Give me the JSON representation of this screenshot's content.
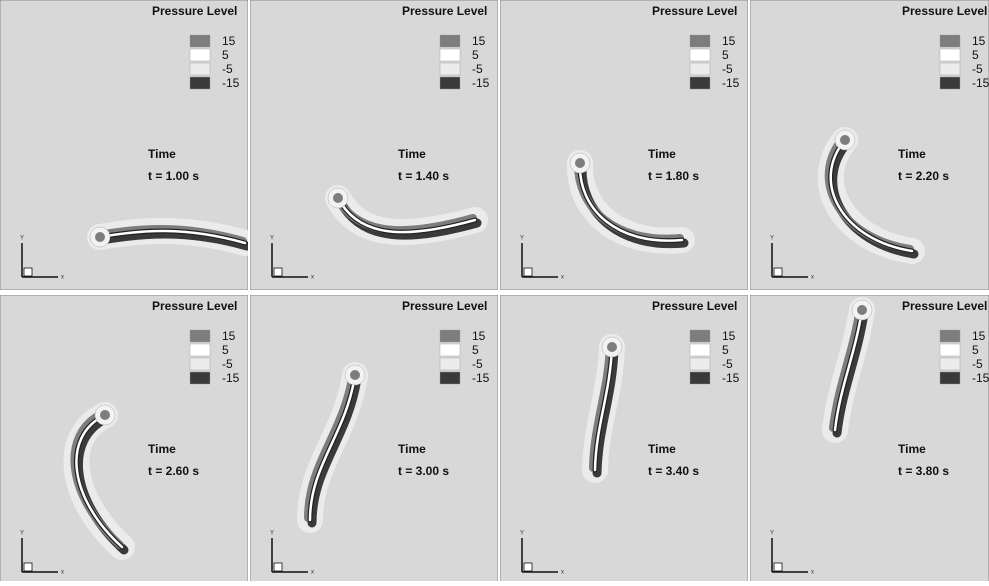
{
  "legend": {
    "title": "Pressure Level",
    "levels": [
      "15",
      "5",
      "-5",
      "-15"
    ]
  },
  "time_label": "Time",
  "axis_labels": {
    "y": "Y",
    "x": "x"
  },
  "panels": [
    {
      "time": "t = 1.00 s"
    },
    {
      "time": "t = 1.40 s"
    },
    {
      "time": "t = 1.80 s"
    },
    {
      "time": "t = 2.20 s"
    },
    {
      "time": "t = 2.60 s"
    },
    {
      "time": "t = 3.00 s"
    },
    {
      "time": "t = 3.40 s"
    },
    {
      "time": "t = 3.80 s"
    }
  ]
}
